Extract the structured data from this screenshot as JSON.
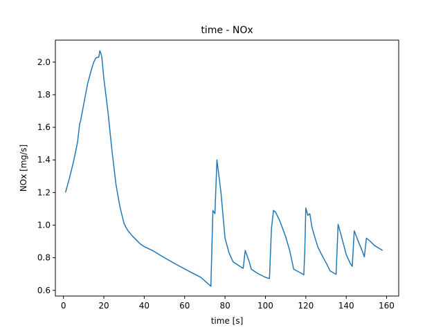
{
  "chart_data": {
    "type": "line",
    "title": "time - NOx",
    "xlabel": "time [s]",
    "ylabel": "NOx [mg/s]",
    "xlim": [
      -4,
      166
    ],
    "ylim": [
      0.565,
      2.135
    ],
    "xticks": [
      0,
      20,
      40,
      60,
      80,
      100,
      120,
      140,
      160
    ],
    "yticks": [
      0.6,
      0.8,
      1.0,
      1.2,
      1.4,
      1.6,
      1.8,
      2.0
    ],
    "ytick_labels": [
      "0.6",
      "0.8",
      "1.0",
      "1.2",
      "1.4",
      "1.6",
      "1.8",
      "2.0"
    ],
    "grid": false,
    "colors": {
      "series": "#1f77b4"
    },
    "series": [
      {
        "x": [
          1,
          3,
          5,
          7,
          8,
          8.5,
          10,
          12,
          14,
          15,
          16,
          17,
          17.5,
          18,
          18.5,
          19,
          20,
          22,
          24,
          26,
          28,
          30,
          31,
          32,
          34,
          36,
          38,
          40,
          44,
          50,
          56,
          62,
          68,
          73,
          74,
          75,
          76,
          78,
          80,
          82,
          84,
          88,
          89,
          90,
          92,
          93,
          96,
          100,
          102,
          103,
          104,
          105,
          107,
          110,
          112,
          114,
          118,
          119,
          119.5,
          120,
          121,
          122,
          123,
          124,
          126,
          128,
          130,
          132,
          134,
          135,
          136,
          138,
          140,
          142,
          143,
          144,
          146,
          148,
          149,
          150,
          152,
          154,
          156,
          158
        ],
        "y": [
          1.2,
          1.29,
          1.39,
          1.51,
          1.62,
          1.64,
          1.74,
          1.87,
          1.96,
          2.0,
          2.025,
          2.03,
          2.03,
          2.07,
          2.055,
          2.03,
          1.9,
          1.7,
          1.46,
          1.25,
          1.11,
          1.01,
          0.985,
          0.965,
          0.935,
          0.91,
          0.885,
          0.868,
          0.845,
          0.8,
          0.758,
          0.718,
          0.68,
          0.625,
          1.09,
          1.07,
          1.4,
          1.2,
          0.92,
          0.83,
          0.775,
          0.742,
          0.735,
          0.845,
          0.775,
          0.73,
          0.705,
          0.68,
          0.672,
          0.98,
          1.09,
          1.08,
          1.03,
          0.93,
          0.845,
          0.73,
          0.703,
          0.695,
          0.84,
          1.105,
          1.06,
          1.07,
          0.99,
          0.945,
          0.865,
          0.815,
          0.77,
          0.72,
          0.705,
          0.698,
          1.005,
          0.915,
          0.82,
          0.765,
          0.747,
          0.965,
          0.9,
          0.84,
          0.805,
          0.92,
          0.9,
          0.875,
          0.86,
          0.845
        ]
      }
    ]
  }
}
